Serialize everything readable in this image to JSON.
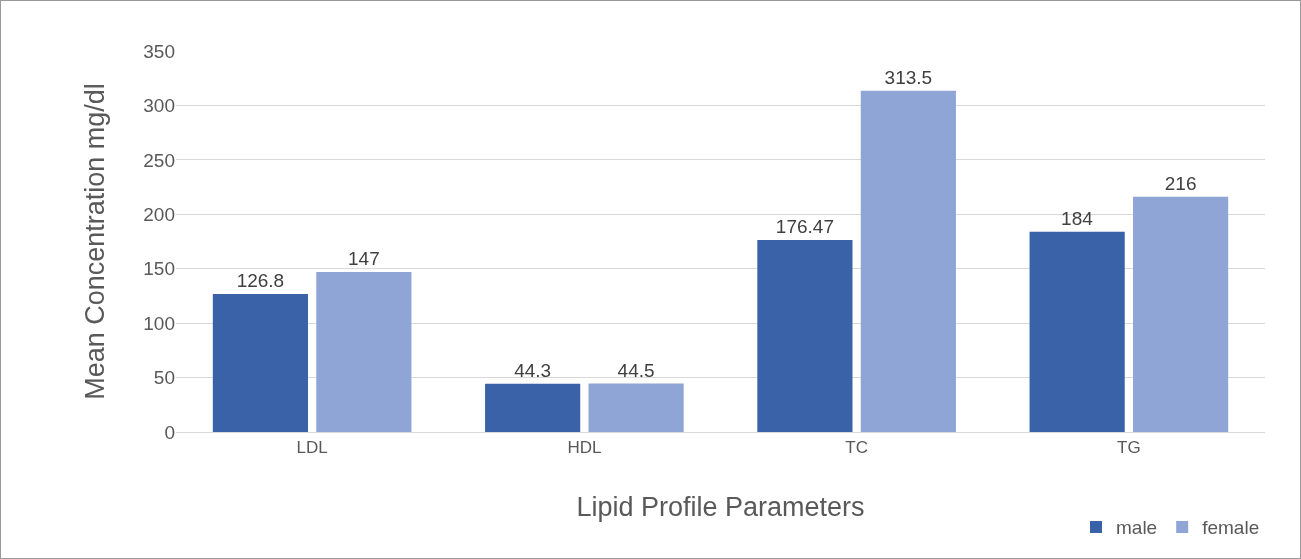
{
  "chart_data": {
    "type": "bar",
    "xlabel": "Lipid Profile Parameters",
    "ylabel": "Mean Concentration mg/dl",
    "categories": [
      "LDL",
      "HDL",
      "TC",
      "TG"
    ],
    "series": [
      {
        "name": "male",
        "color": "#3a62a8",
        "values": [
          126.8,
          44.3,
          176.47,
          184
        ]
      },
      {
        "name": "female",
        "color": "#8fa5d5",
        "values": [
          147,
          44.5,
          313.5,
          216
        ]
      }
    ],
    "ylim": [
      0,
      350
    ],
    "yticks": [
      0,
      50,
      100,
      150,
      200,
      250,
      300,
      350
    ],
    "grid": "y",
    "legend": "bottom right",
    "data_labels": true
  }
}
